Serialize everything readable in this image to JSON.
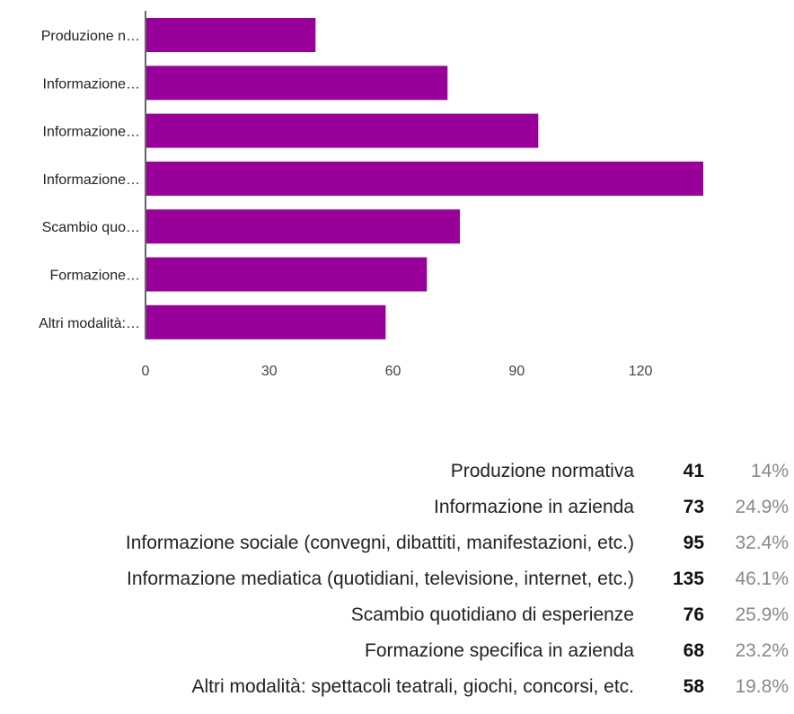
{
  "colors": {
    "bar": "#990099",
    "axis": "#333333",
    "grid": "#cccccc"
  },
  "chart_data": {
    "type": "bar",
    "orientation": "horizontal",
    "categories": [
      "Produzione n…",
      "Informazione…",
      "Informazione…",
      "Informazione…",
      "Scambio quo…",
      "Formazione…",
      "Altri modalità:…"
    ],
    "values": [
      41,
      73,
      95,
      135,
      76,
      68,
      58
    ],
    "xticks": [
      "0",
      "30",
      "60",
      "90",
      "120"
    ],
    "xlim": [
      0,
      135
    ],
    "title": "",
    "xlabel": "",
    "ylabel": "",
    "grid": false,
    "legend": "none"
  },
  "summary": {
    "rows": [
      {
        "label": "Produzione normativa",
        "count": "41",
        "percent": "14%"
      },
      {
        "label": "Informazione in azienda",
        "count": "73",
        "percent": "24.9%"
      },
      {
        "label": "Informazione sociale (convegni, dibattiti, manifestazioni, etc.)",
        "count": "95",
        "percent": "32.4%"
      },
      {
        "label": "Informazione mediatica (quotidiani, televisione, internet, etc.)",
        "count": "135",
        "percent": "46.1%"
      },
      {
        "label": "Scambio quotidiano di esperienze",
        "count": "76",
        "percent": "25.9%"
      },
      {
        "label": "Formazione specifica in azienda",
        "count": "68",
        "percent": "23.2%"
      },
      {
        "label": "Altri modalità: spettacoli teatrali, giochi, concorsi, etc.",
        "count": "58",
        "percent": "19.8%"
      }
    ]
  }
}
